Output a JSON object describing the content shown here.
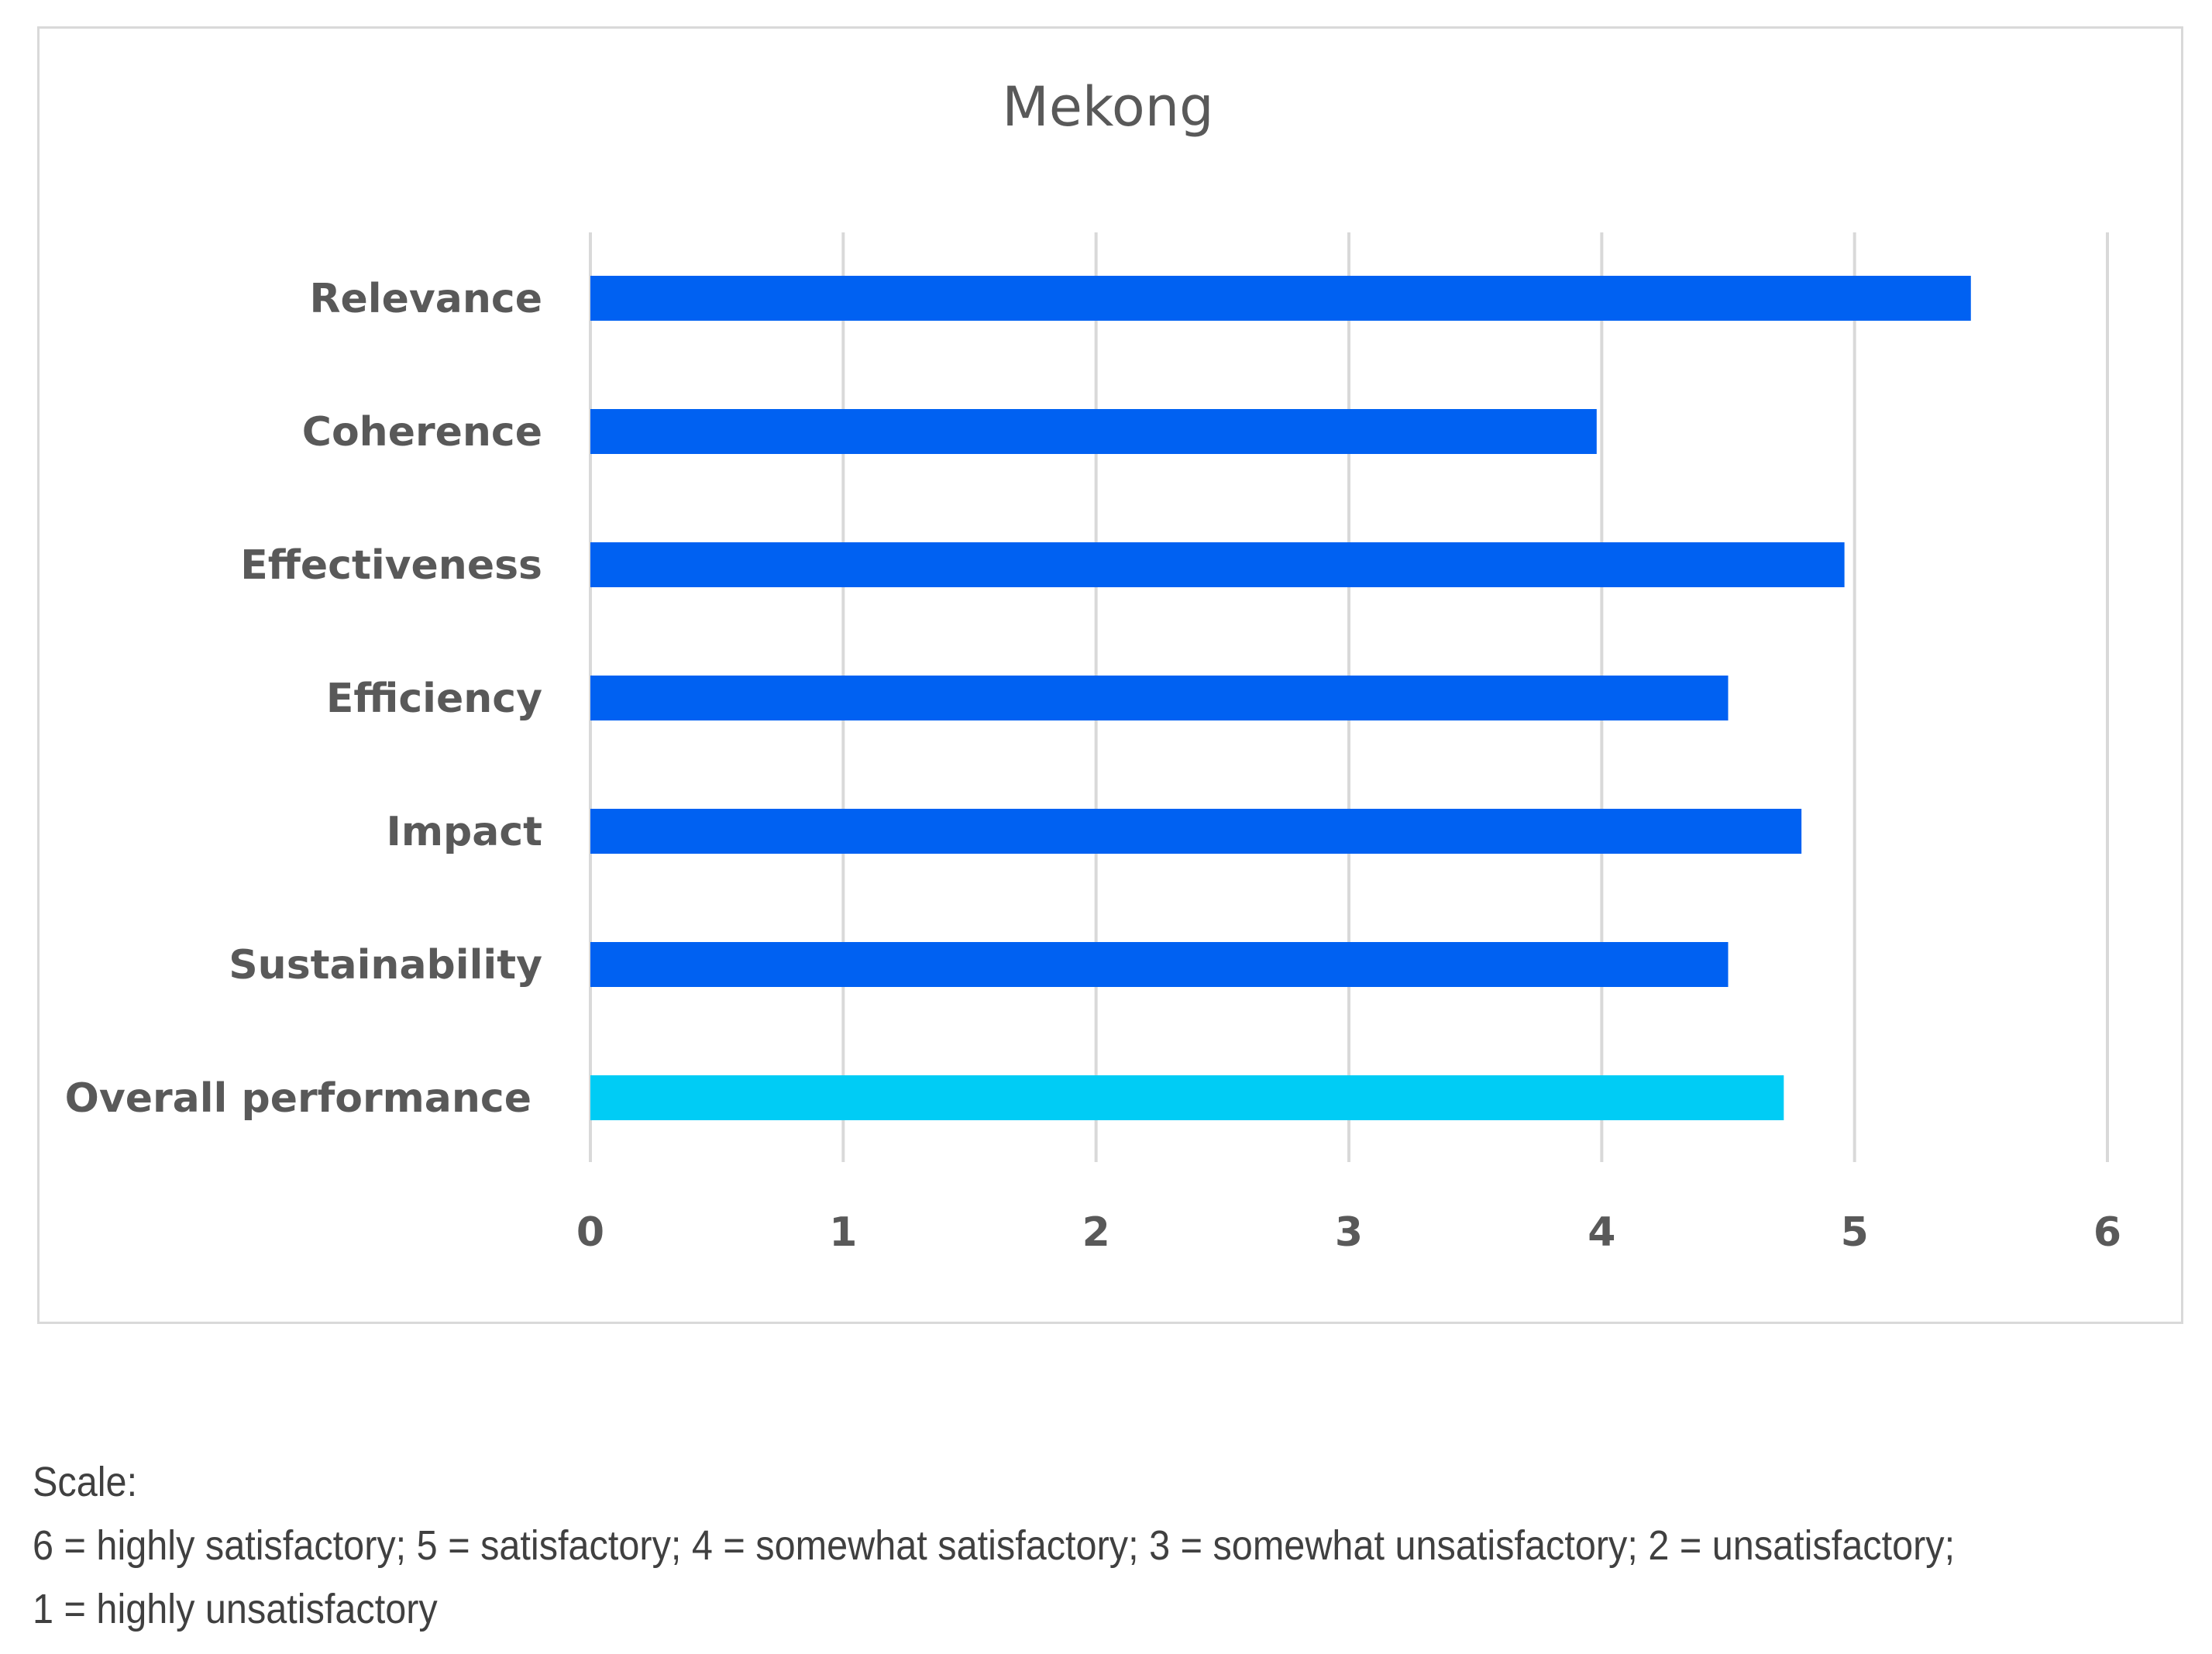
{
  "chart_data": {
    "type": "bar",
    "orientation": "horizontal",
    "title": "Mekong",
    "categories": [
      "Relevance",
      "Coherence",
      "Effectiveness",
      "Efficiency",
      "Impact",
      "Sustainability",
      "Overall performance"
    ],
    "values": [
      5.46,
      3.98,
      4.96,
      4.5,
      4.79,
      4.5,
      4.72
    ],
    "bar_colors": [
      "#0061f2",
      "#0061f2",
      "#0061f2",
      "#0061f2",
      "#0061f2",
      "#0061f2",
      "#00ccf5"
    ],
    "xlim": [
      0,
      6
    ],
    "xticks": [
      "0",
      "1",
      "2",
      "3",
      "4",
      "5",
      "6"
    ],
    "xlabel": "",
    "ylabel": "",
    "grid": true
  },
  "colors": {
    "bar": "#0061f2",
    "overall_bar": "#00ccf5",
    "text": "#595959",
    "grid": "#d9d9d9"
  },
  "scale_note": {
    "heading": "Scale:",
    "line1": "6 = highly satisfactory; 5 = satisfactory; 4 = somewhat satisfactory; 3 = somewhat unsatisfactory; 2 = unsatisfactory;",
    "line2": "1 = highly unsatisfactory"
  }
}
